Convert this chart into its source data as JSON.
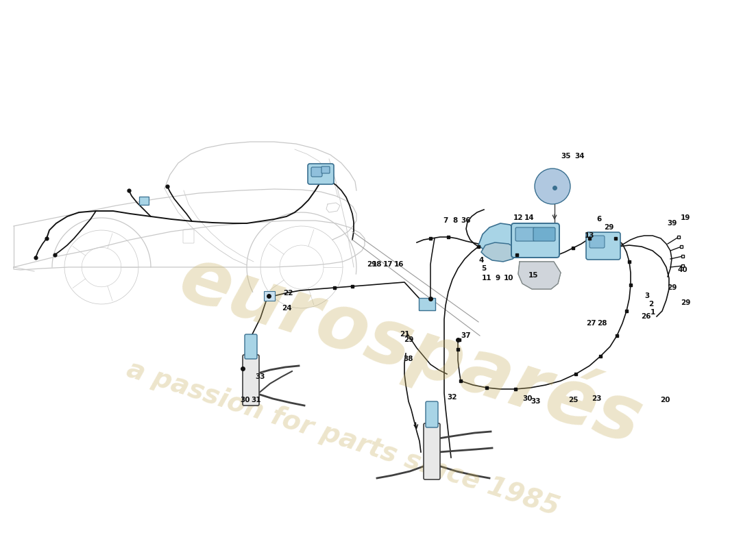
{
  "bg_color": "#ffffff",
  "car_color": "#c8c8c8",
  "car_lw": 0.9,
  "wire_color": "#111111",
  "wire_lw": 1.4,
  "comp_fill": "#a8d4e6",
  "comp_edge": "#3a7090",
  "gray_fill": "#d0d5db",
  "label_fs": 7.5,
  "label_color": "#111111",
  "wm_color": "#c8b060",
  "wm_alpha": 0.32,
  "figsize": [
    11.0,
    8.0
  ],
  "dpi": 100
}
